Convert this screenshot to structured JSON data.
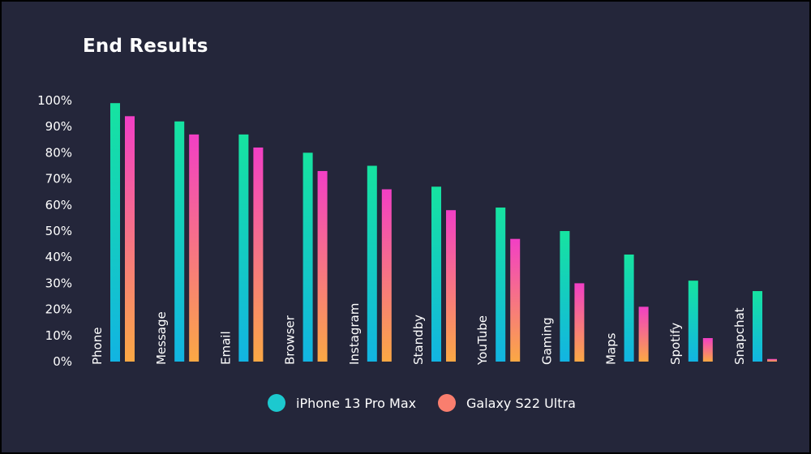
{
  "chart_data": {
    "type": "bar",
    "title": "End Results",
    "categories": [
      "Phone",
      "Message",
      "Email",
      "Browser",
      "Instagram",
      "Standby",
      "YouTube",
      "Gaming",
      "Maps",
      "Spotify",
      "Snapchat"
    ],
    "series": [
      {
        "name": "iPhone 13 Pro Max",
        "values": [
          99,
          92,
          87,
          80,
          75,
          67,
          59,
          50,
          41,
          31,
          27
        ]
      },
      {
        "name": "Galaxy S22 Ultra",
        "values": [
          94,
          87,
          82,
          73,
          66,
          58,
          47,
          30,
          21,
          9,
          1
        ]
      }
    ],
    "y_ticks": [
      "0%",
      "10%",
      "20%",
      "30%",
      "40%",
      "50%",
      "60%",
      "70%",
      "80%",
      "90%",
      "100%"
    ],
    "ylim": [
      0,
      100
    ],
    "grid": false,
    "legend_position": "bottom-center",
    "colors": {
      "background": "#24263a",
      "iphone_gradient": [
        "#16e3a0",
        "#12b4e2"
      ],
      "galaxy_gradient": [
        "#f23fc5",
        "#fba844"
      ],
      "iphone_legend": "#1cc9cf",
      "galaxy_legend": "#f97e6e"
    }
  }
}
